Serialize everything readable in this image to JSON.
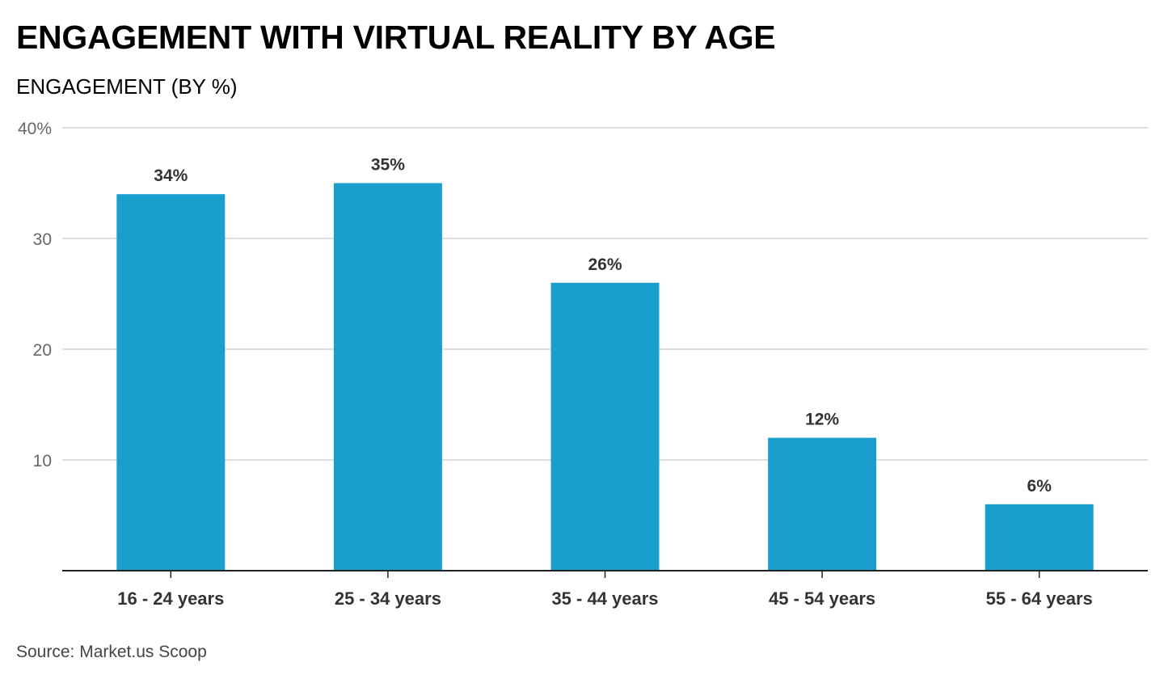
{
  "chart_data": {
    "type": "bar",
    "title": "ENGAGEMENT WITH VIRTUAL REALITY BY AGE",
    "subtitle": "ENGAGEMENT (BY %)",
    "categories": [
      "16 - 24 years",
      "25 - 34 years",
      "35 - 44 years",
      "45 - 54 years",
      "55 - 64 years"
    ],
    "values": [
      34,
      35,
      26,
      12,
      6
    ],
    "data_labels": [
      "34%",
      "35%",
      "26%",
      "12%",
      "6%"
    ],
    "ylim": [
      0,
      40
    ],
    "yticks": [
      10,
      20,
      30,
      40
    ],
    "ytick_labels": [
      "10",
      "20",
      "30",
      "40%"
    ],
    "grid": true,
    "bar_color": "#1a9fcc",
    "source": "Source: Market.us Scoop"
  }
}
